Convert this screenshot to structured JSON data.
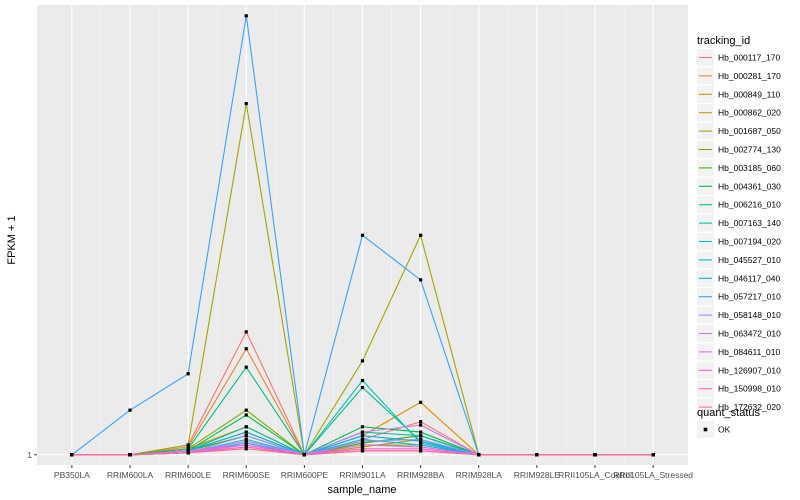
{
  "chart_data": {
    "type": "line",
    "xlabel": "sample_name",
    "ylabel": "FPKM + 1",
    "categories": [
      "PB350LA",
      "RRIM600LA",
      "RRIM600LE",
      "RRIM600SE",
      "RRIM600PE",
      "RRIM901LA",
      "RRIM928BA",
      "RRIM928LA",
      "RRIM928LE",
      "RRII105LA_Control",
      "RRII105LA_Stressed"
    ],
    "y_axis": {
      "scale": "log",
      "tick_labels": [
        "1"
      ],
      "tick_values": [
        1
      ],
      "range": [
        0.95,
        9.5
      ]
    },
    "grid": true,
    "legend": {
      "placement": "right",
      "color_title": "tracking_id",
      "shape_title": "quant_status",
      "shape_entries": [
        "OK"
      ]
    },
    "series": [
      {
        "name": "Hb_000117_170",
        "color": "#F8766D",
        "values": [
          1,
          1,
          1.05,
          1.85,
          1,
          1.08,
          1.18,
          1,
          1,
          1,
          1
        ]
      },
      {
        "name": "Hb_000281_170",
        "color": "#EA8331",
        "values": [
          1,
          1,
          1.04,
          1.7,
          1,
          1.06,
          1.1,
          1,
          1,
          1,
          1
        ]
      },
      {
        "name": "Hb_000849_110",
        "color": "#D89000",
        "values": [
          1,
          1,
          1.03,
          1.15,
          1,
          1.1,
          1.3,
          1,
          1,
          1,
          1
        ]
      },
      {
        "name": "Hb_000862_020",
        "color": "#C09B00",
        "values": [
          1,
          1,
          1.02,
          1.12,
          1,
          1.04,
          1.08,
          1,
          1,
          1,
          1
        ]
      },
      {
        "name": "Hb_001687_050",
        "color": "#A3A500",
        "values": [
          1,
          1,
          1.05,
          5.8,
          1,
          1.6,
          3.0,
          1,
          1,
          1,
          1
        ]
      },
      {
        "name": "Hb_002774_130",
        "color": "#7CAE00",
        "values": [
          1,
          1,
          1.03,
          1.25,
          1,
          1.05,
          1.05,
          1,
          1,
          1,
          1
        ]
      },
      {
        "name": "Hb_003185_060",
        "color": "#39B600",
        "values": [
          1,
          1,
          1.02,
          1.1,
          1,
          1.06,
          1.1,
          1,
          1,
          1,
          1
        ]
      },
      {
        "name": "Hb_004361_030",
        "color": "#00BB4E",
        "values": [
          1,
          1,
          1.02,
          1.22,
          1,
          1.15,
          1.12,
          1,
          1,
          1,
          1
        ]
      },
      {
        "name": "Hb_006216_010",
        "color": "#00BF7D",
        "values": [
          1,
          1,
          1.03,
          1.55,
          1,
          1.4,
          1.07,
          1,
          1,
          1,
          1
        ]
      },
      {
        "name": "Hb_007163_140",
        "color": "#00C1A3",
        "values": [
          1,
          1,
          1.02,
          1.15,
          1,
          1.12,
          1.1,
          1,
          1,
          1,
          1
        ]
      },
      {
        "name": "Hb_007194_020",
        "color": "#00BFC4",
        "values": [
          1,
          1,
          1.01,
          1.08,
          1,
          1.45,
          1.06,
          1,
          1,
          1,
          1
        ]
      },
      {
        "name": "Hb_045527_010",
        "color": "#00BAE0",
        "values": [
          1,
          1,
          1.01,
          1.06,
          1,
          1.08,
          1.05,
          1,
          1,
          1,
          1
        ]
      },
      {
        "name": "Hb_046117_040",
        "color": "#00B0F6",
        "values": [
          1,
          1,
          1.02,
          1.12,
          1,
          1.1,
          1.07,
          1,
          1,
          1,
          1
        ]
      },
      {
        "name": "Hb_057217_010",
        "color": "#35A2FF",
        "values": [
          1,
          1.25,
          1.5,
          9.0,
          1,
          3.0,
          2.4,
          1,
          1,
          1,
          1
        ]
      },
      {
        "name": "Hb_058148_010",
        "color": "#9590FF",
        "values": [
          1,
          1,
          1.01,
          1.1,
          1,
          1.07,
          1.08,
          1,
          1,
          1,
          1
        ]
      },
      {
        "name": "Hb_063472_010",
        "color": "#C77CFF",
        "values": [
          1,
          1,
          1.01,
          1.05,
          1,
          1.12,
          1.16,
          1,
          1,
          1,
          1
        ]
      },
      {
        "name": "Hb_084611_010",
        "color": "#E76BF3",
        "values": [
          1,
          1,
          1.01,
          1.07,
          1,
          1.05,
          1.04,
          1,
          1,
          1,
          1
        ]
      },
      {
        "name": "Hb_126907_010",
        "color": "#FA62DB",
        "values": [
          1,
          1,
          1.02,
          1.05,
          1,
          1.03,
          1.03,
          1,
          1,
          1,
          1
        ]
      },
      {
        "name": "Hb_150998_010",
        "color": "#FF62BC",
        "values": [
          1,
          1,
          1.01,
          1.04,
          1,
          1.02,
          1.02,
          1,
          1,
          1,
          1
        ]
      },
      {
        "name": "Hb_172632_020",
        "color": "#FF6C91",
        "values": [
          1,
          1,
          1.01,
          1.03,
          1,
          1.02,
          1.02,
          1,
          1,
          1,
          1
        ]
      }
    ]
  }
}
